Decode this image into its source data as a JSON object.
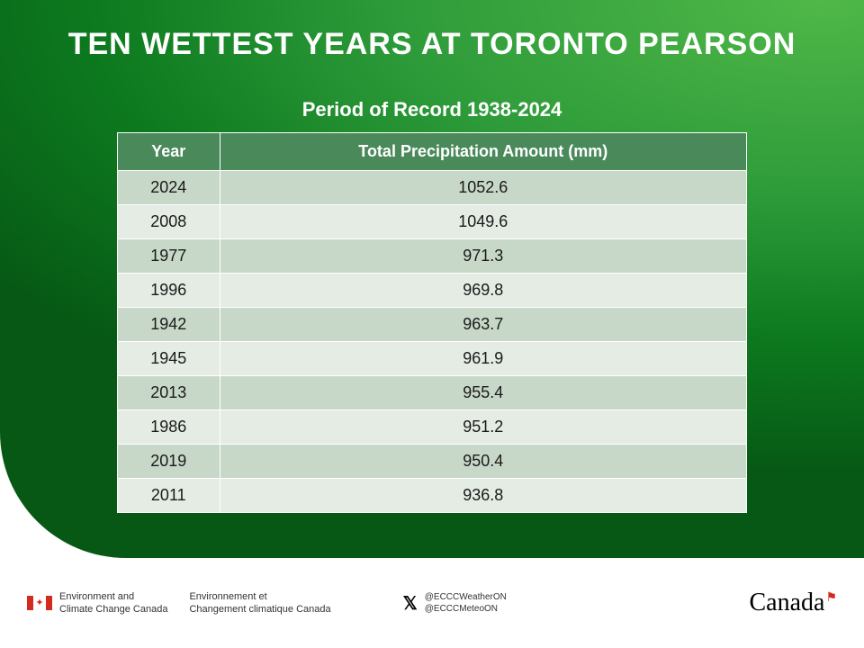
{
  "title": "TEN WETTEST YEARS AT TORONTO PEARSON",
  "subtitle": "Period of Record 1938-2024",
  "table": {
    "columns": [
      "Year",
      "Total Precipitation Amount (mm)"
    ],
    "rows": [
      [
        "2024",
        "1052.6"
      ],
      [
        "2008",
        "1049.6"
      ],
      [
        "1977",
        "971.3"
      ],
      [
        "1996",
        "969.8"
      ],
      [
        "1942",
        "963.7"
      ],
      [
        "1945",
        "961.9"
      ],
      [
        "2013",
        "955.4"
      ],
      [
        "1986",
        "951.2"
      ],
      [
        "2019",
        "950.4"
      ],
      [
        "2011",
        "936.8"
      ]
    ],
    "header_bg": "#4a8a5a",
    "row_odd_bg": "#c8d8c8",
    "row_even_bg": "#e4ece4",
    "header_fontsize": 18,
    "cell_fontsize": 18
  },
  "footer": {
    "dept_en_line1": "Environment and",
    "dept_en_line2": "Climate Change Canada",
    "dept_fr_line1": "Environnement et",
    "dept_fr_line2": "Changement climatique Canada",
    "handle1": "@ECCCWeatherON",
    "handle2": "@ECCCMeteoON",
    "wordmark": "Canada"
  },
  "colors": {
    "panel_gradient_light": "#4fb848",
    "panel_gradient_dark": "#065814",
    "flag_red": "#d52b1e",
    "text_white": "#ffffff",
    "text_dark": "#1a1a1a"
  }
}
